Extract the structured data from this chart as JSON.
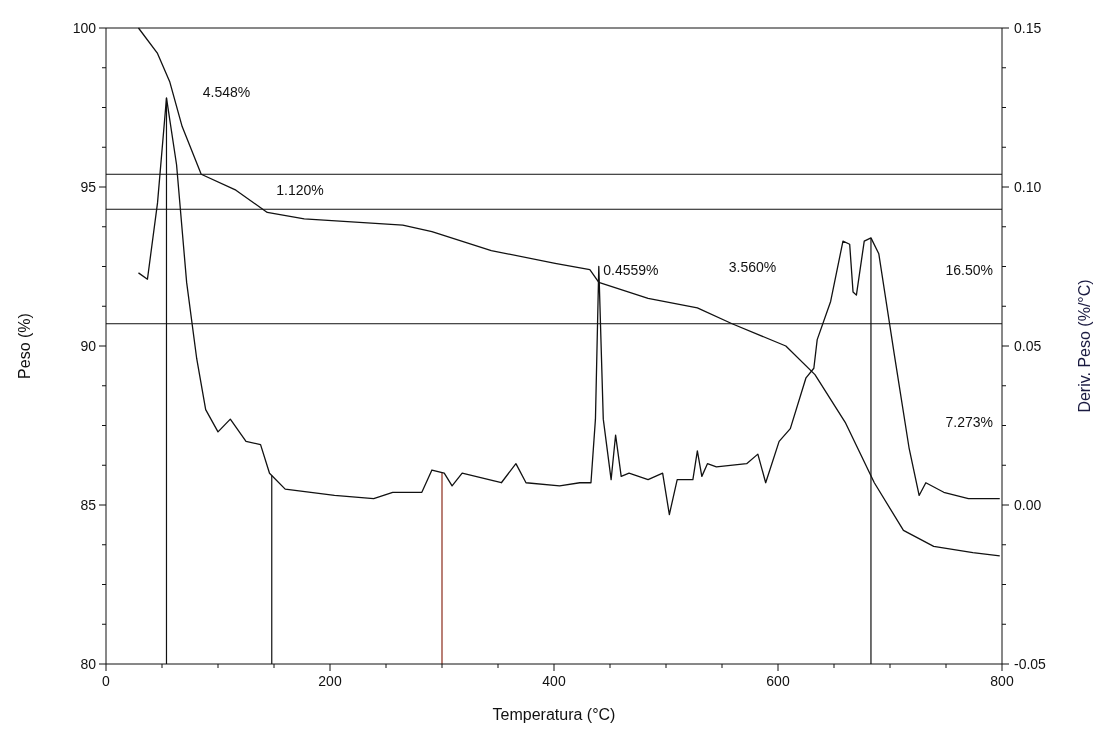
{
  "chart_data": {
    "type": "line",
    "xlabel": "Temperatura (°C)",
    "ylabel": "Peso (%)",
    "y2label": "Deriv. Peso (%/°C)",
    "xlim": [
      0,
      800
    ],
    "xticks": [
      0,
      {
        "value": 50,
        "label": null
      },
      {
        "value": 100,
        "label": null
      },
      {
        "value": 150,
        "label": null
      },
      200,
      {
        "value": 250,
        "label": null
      },
      {
        "value": 300,
        "label": null
      },
      {
        "value": 350,
        "label": null
      },
      400,
      {
        "value": 450,
        "label": null
      },
      {
        "value": 500,
        "label": null
      },
      {
        "value": 550,
        "label": null
      },
      600,
      {
        "value": 650,
        "label": null
      },
      {
        "value": 700,
        "label": null
      },
      {
        "value": 750,
        "label": null
      },
      800
    ],
    "ylim": [
      80,
      100
    ],
    "yticks": [
      80,
      {
        "value": 81.25,
        "label": null
      },
      {
        "value": 82.5,
        "label": null
      },
      {
        "value": 83.75,
        "label": null
      },
      85,
      {
        "value": 86.25,
        "label": null
      },
      {
        "value": 87.5,
        "label": null
      },
      {
        "value": 88.75,
        "label": null
      },
      90,
      {
        "value": 91.25,
        "label": null
      },
      {
        "value": 92.5,
        "label": null
      },
      {
        "value": 93.75,
        "label": null
      },
      95,
      {
        "value": 96.25,
        "label": null
      },
      {
        "value": 97.5,
        "label": null
      },
      {
        "value": 98.75,
        "label": null
      },
      100
    ],
    "y2lim": [
      -0.05,
      0.15
    ],
    "y2ticks": [
      {
        "value": -0.05,
        "label": "-0.05"
      },
      {
        "value": -0.0375,
        "label": null
      },
      {
        "value": -0.025,
        "label": null
      },
      {
        "value": -0.0125,
        "label": null
      },
      {
        "value": 0,
        "label": "0.00"
      },
      {
        "value": 0.0125,
        "label": null
      },
      {
        "value": 0.025,
        "label": null
      },
      {
        "value": 0.0375,
        "label": null
      },
      {
        "value": 0.05,
        "label": "0.05"
      },
      {
        "value": 0.0625,
        "label": null
      },
      {
        "value": 0.075,
        "label": null
      },
      {
        "value": 0.0875,
        "label": null
      },
      {
        "value": 0.1,
        "label": "0.10"
      },
      {
        "value": 0.1125,
        "label": null
      },
      {
        "value": 0.125,
        "label": null
      },
      {
        "value": 0.1375,
        "label": null
      },
      {
        "value": 0.15,
        "label": "0.15"
      }
    ],
    "grid": false,
    "marker": "none",
    "line_style": "solid",
    "series": [
      {
        "color": "#111111",
        "x": [
          29,
          46,
          57,
          68,
          85,
          116,
          144,
          177,
          265,
          291,
          344,
          401,
          432,
          440,
          484,
          528,
          559,
          607,
          633,
          660,
          686,
          712,
          739,
          774,
          798
        ],
        "values": [
          100.0,
          99.2,
          98.3,
          96.9,
          95.4,
          94.9,
          94.2,
          94.0,
          93.8,
          93.6,
          93.0,
          92.6,
          92.4,
          92.0,
          91.5,
          91.2,
          90.7,
          90.0,
          89.1,
          87.6,
          85.7,
          84.2,
          83.7,
          83.5,
          83.4
        ]
      },
      {
        "color": "#111111",
        "axis": "y2",
        "x": [
          29,
          37,
          46,
          54,
          63,
          72,
          81,
          89,
          100,
          111,
          125,
          138,
          146,
          160,
          204,
          239,
          256,
          282,
          291,
          302,
          309,
          318,
          353,
          366,
          375,
          405,
          423,
          433,
          437,
          440,
          444,
          451,
          455,
          460,
          467,
          484,
          497,
          503,
          510,
          524,
          528,
          532,
          537,
          545,
          572,
          582,
          589,
          601,
          611,
          625,
          632,
          635,
          647,
          658,
          664,
          667,
          670,
          677,
          683,
          690,
          704,
          717,
          726,
          732,
          748,
          770,
          798
        ],
        "values": [
          0.073,
          0.071,
          0.095,
          0.128,
          0.107,
          0.07,
          0.046,
          0.03,
          0.023,
          0.027,
          0.02,
          0.019,
          0.01,
          0.005,
          0.003,
          0.002,
          0.004,
          0.004,
          0.011,
          0.01,
          0.006,
          0.01,
          0.007,
          0.013,
          0.007,
          0.006,
          0.007,
          0.007,
          0.027,
          0.075,
          0.027,
          0.008,
          0.022,
          0.009,
          0.01,
          0.008,
          0.01,
          -0.003,
          0.008,
          0.008,
          0.017,
          0.009,
          0.013,
          0.012,
          0.013,
          0.016,
          0.007,
          0.02,
          0.024,
          0.04,
          0.043,
          0.052,
          0.064,
          0.083,
          0.082,
          0.067,
          0.066,
          0.083,
          0.084,
          0.079,
          0.047,
          0.018,
          0.003,
          0.007,
          0.004,
          0.002,
          0.002
        ]
      }
    ],
    "ref_lines": [
      {
        "axis": "x",
        "value": 54,
        "color": "#111111"
      },
      {
        "axis": "x",
        "value": 148,
        "color": "#111111"
      },
      {
        "axis": "x",
        "value": 300,
        "color": "#8b2a1a"
      },
      {
        "axis": "x",
        "value": 683,
        "color": "#111111"
      },
      {
        "axis": "y",
        "value": 95.4,
        "color": "#111111"
      },
      {
        "axis": "y",
        "value": 94.3,
        "color": "#111111"
      },
      {
        "axis": "y",
        "value": 90.7,
        "color": "#111111"
      }
    ],
    "annotations": [
      "4.548%",
      "1.120%",
      "0.4559%",
      "3.560%",
      "16.50%",
      "7.273%"
    ]
  }
}
